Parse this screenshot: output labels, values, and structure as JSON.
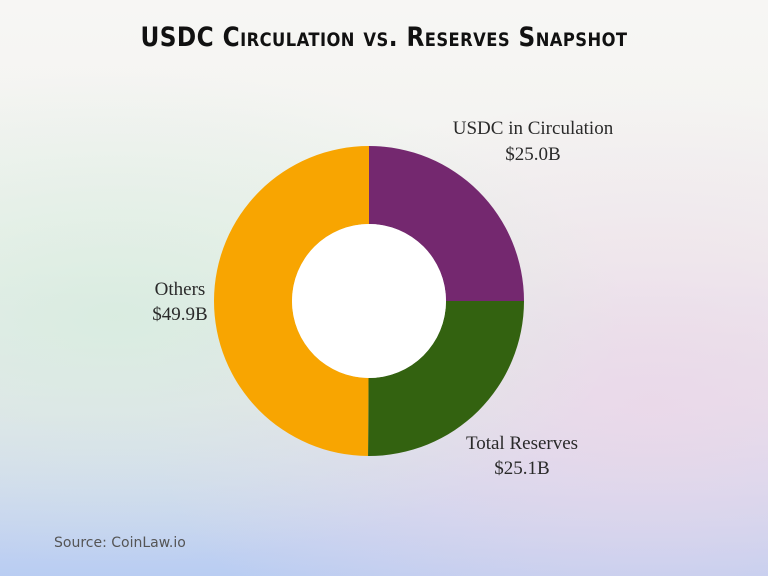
{
  "title": "USDC Circulation vs. Reserves Snapshot",
  "source": "Source: CoinLaw.io",
  "chart_data": {
    "type": "pie",
    "donut": true,
    "title": "USDC Circulation vs. Reserves Snapshot",
    "slices": [
      {
        "label": "USDC in Circulation",
        "value": 25.0,
        "value_label": "$25.0B",
        "color": "#74286f"
      },
      {
        "label": "Total Reserves",
        "value": 25.1,
        "value_label": "$25.1B",
        "color": "#336210"
      },
      {
        "label": "Others",
        "value": 49.9,
        "value_label": "$49.9B",
        "color": "#f8a501"
      }
    ],
    "start_angle": "12 o'clock",
    "direction": "clockwise",
    "legend": "none"
  }
}
